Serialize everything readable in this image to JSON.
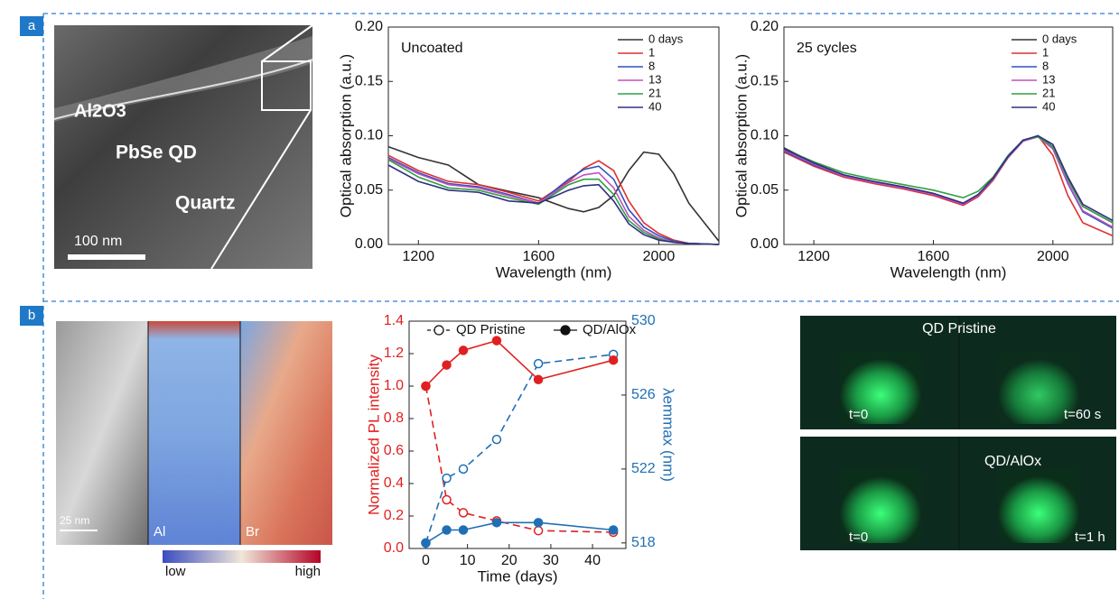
{
  "panels": {
    "labels": [
      "a",
      "b"
    ],
    "tem": {
      "layers": [
        "Al2O3",
        "PbSe QD",
        "Quartz"
      ],
      "scale": "100 nm"
    },
    "edx": {
      "scale": "25 nm",
      "maps": [
        "Al",
        "Br"
      ],
      "colorbar": [
        "low",
        "high"
      ]
    },
    "photos": {
      "rows": [
        {
          "title": "QD Pristine",
          "times": [
            "t=0",
            "t=60 s"
          ]
        },
        {
          "title": "QD/AlOx",
          "times": [
            "t=0",
            "t=1 h"
          ]
        }
      ]
    }
  },
  "chart_data": [
    {
      "type": "line",
      "annotation": "Uncoated",
      "xlabel": "Wavelength (nm)",
      "ylabel": "Optical absorption (a.u.)",
      "x": [
        1100,
        1200,
        1300,
        1400,
        1500,
        1600,
        1700,
        1750,
        1800,
        1850,
        1900,
        1950,
        2000,
        2050,
        2100,
        2200
      ],
      "xlim": [
        1100,
        2200
      ],
      "xticks": [
        1200,
        1600,
        2000
      ],
      "ylim": [
        0,
        0.2
      ],
      "yticks": [
        {
          "value": 0,
          "label": "0.00"
        },
        {
          "value": 0.05,
          "label": "0.05"
        },
        {
          "value": 0.1,
          "label": "0.10"
        },
        {
          "value": 0.15,
          "label": "0.15"
        },
        {
          "value": 0.2,
          "label": "0.20"
        }
      ],
      "series": [
        {
          "name": "0 days",
          "color": "#333333",
          "values": [
            0.09,
            0.08,
            0.073,
            0.055,
            0.049,
            0.043,
            0.033,
            0.03,
            0.034,
            0.045,
            0.068,
            0.085,
            0.083,
            0.065,
            0.038,
            0.003
          ]
        },
        {
          "name": "1",
          "color": "#e03030",
          "values": [
            0.082,
            0.068,
            0.058,
            0.055,
            0.048,
            0.04,
            0.058,
            0.07,
            0.077,
            0.068,
            0.04,
            0.02,
            0.01,
            0.004,
            0.001,
            0
          ]
        },
        {
          "name": "8",
          "color": "#3050c0",
          "values": [
            0.08,
            0.066,
            0.056,
            0.053,
            0.046,
            0.038,
            0.06,
            0.069,
            0.072,
            0.06,
            0.032,
            0.016,
            0.008,
            0.003,
            0.001,
            0
          ]
        },
        {
          "name": "13",
          "color": "#c050c0",
          "values": [
            0.079,
            0.065,
            0.055,
            0.052,
            0.045,
            0.038,
            0.057,
            0.064,
            0.066,
            0.052,
            0.026,
            0.013,
            0.006,
            0.002,
            0.001,
            0
          ]
        },
        {
          "name": "21",
          "color": "#30a040",
          "values": [
            0.078,
            0.062,
            0.052,
            0.05,
            0.043,
            0.037,
            0.055,
            0.06,
            0.06,
            0.046,
            0.022,
            0.011,
            0.005,
            0.002,
            0.001,
            0
          ]
        },
        {
          "name": "40",
          "color": "#303080",
          "values": [
            0.073,
            0.058,
            0.05,
            0.048,
            0.04,
            0.038,
            0.05,
            0.054,
            0.055,
            0.04,
            0.019,
            0.009,
            0.004,
            0.002,
            0.001,
            0
          ]
        }
      ]
    },
    {
      "type": "line",
      "annotation": "25 cycles",
      "xlabel": "Wavelength (nm)",
      "ylabel": "Optical absorption (a.u.)",
      "x": [
        1100,
        1200,
        1300,
        1400,
        1500,
        1600,
        1700,
        1750,
        1800,
        1850,
        1900,
        1950,
        2000,
        2050,
        2100,
        2200
      ],
      "xlim": [
        1100,
        2200
      ],
      "xticks": [
        1200,
        1600,
        2000
      ],
      "ylim": [
        0,
        0.2
      ],
      "yticks": [
        {
          "value": 0,
          "label": "0.00"
        },
        {
          "value": 0.05,
          "label": "0.05"
        },
        {
          "value": 0.1,
          "label": "0.10"
        },
        {
          "value": 0.15,
          "label": "0.15"
        },
        {
          "value": 0.2,
          "label": "0.20"
        }
      ],
      "series": [
        {
          "name": "0 days",
          "color": "#333333",
          "values": [
            0.089,
            0.075,
            0.064,
            0.058,
            0.053,
            0.047,
            0.038,
            0.045,
            0.06,
            0.08,
            0.095,
            0.1,
            0.09,
            0.06,
            0.035,
            0.02
          ]
        },
        {
          "name": "1",
          "color": "#e03030",
          "values": [
            0.085,
            0.072,
            0.062,
            0.056,
            0.051,
            0.045,
            0.036,
            0.044,
            0.059,
            0.08,
            0.095,
            0.1,
            0.082,
            0.045,
            0.02,
            0.008
          ]
        },
        {
          "name": "8",
          "color": "#3050c0",
          "values": [
            0.086,
            0.073,
            0.063,
            0.057,
            0.052,
            0.046,
            0.037,
            0.045,
            0.06,
            0.08,
            0.095,
            0.1,
            0.088,
            0.056,
            0.03,
            0.015
          ]
        },
        {
          "name": "13",
          "color": "#c050c0",
          "values": [
            0.087,
            0.074,
            0.063,
            0.057,
            0.052,
            0.046,
            0.037,
            0.045,
            0.06,
            0.08,
            0.095,
            0.099,
            0.088,
            0.057,
            0.031,
            0.016
          ]
        },
        {
          "name": "21",
          "color": "#30a040",
          "values": [
            0.088,
            0.076,
            0.066,
            0.06,
            0.055,
            0.05,
            0.043,
            0.049,
            0.062,
            0.082,
            0.096,
            0.099,
            0.09,
            0.06,
            0.035,
            0.02
          ]
        },
        {
          "name": "40",
          "color": "#303080",
          "values": [
            0.088,
            0.075,
            0.064,
            0.058,
            0.053,
            0.047,
            0.038,
            0.046,
            0.061,
            0.081,
            0.096,
            0.1,
            0.092,
            0.062,
            0.037,
            0.022
          ]
        }
      ]
    },
    {
      "type": "dual_line",
      "xlabel": "Time (days)",
      "ylabel": "Normalized PL intensity",
      "y2label": "λemmax (nm)",
      "color": "#e02020",
      "y2_color": "#1f6fb5",
      "x": [
        0,
        5,
        9,
        17,
        27,
        45
      ],
      "xlim": [
        -4,
        48
      ],
      "xticks": [
        0,
        10,
        20,
        30,
        40
      ],
      "ylim": [
        0,
        1.4
      ],
      "yticks": [
        {
          "value": 0,
          "label": "0.0"
        },
        0.2,
        0.4,
        0.6,
        0.8,
        {
          "value": 1,
          "label": "1.0"
        },
        1.2,
        1.4
      ],
      "y2lim": [
        517.7,
        530
      ],
      "y2ticks": [
        518,
        522,
        526,
        530
      ],
      "series": [
        {
          "name": "QD Pristine",
          "dashed": true,
          "filled": false,
          "values": [
            1.0,
            0.3,
            0.22,
            0.17,
            0.11,
            0.1
          ],
          "y2_values": [
            518,
            521.5,
            522,
            523.6,
            527.7,
            528.2
          ]
        },
        {
          "name": "QD/AlOx",
          "dashed": false,
          "filled": true,
          "values": [
            1.0,
            1.13,
            1.22,
            1.28,
            1.04,
            1.16
          ],
          "y2_values": [
            518,
            518.7,
            518.7,
            519.1,
            519.1,
            518.7
          ]
        }
      ]
    }
  ]
}
